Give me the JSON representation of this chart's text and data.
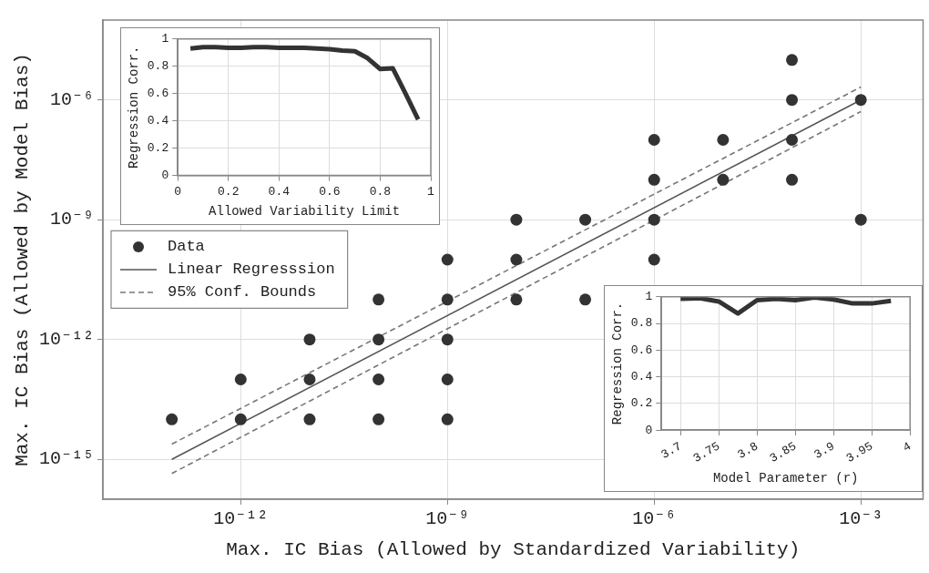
{
  "chart_data": [
    {
      "type": "scatter",
      "xlabel": "Max. IC Bias (Allowed by Standardized Variability)",
      "ylabel": "Max. IC Bias (Allowed by Model Bias)",
      "log": "xy",
      "xlim": [
        1e-14,
        0.008
      ],
      "ylim": [
        1e-16,
        0.0001
      ],
      "xticks": [
        {
          "value": 1e-12,
          "label": "10⁻¹²"
        },
        {
          "value": 1e-09,
          "label": "10⁻⁹"
        },
        {
          "value": 1e-06,
          "label": "10⁻⁶"
        },
        {
          "value": 0.001,
          "label": "10⁻³"
        }
      ],
      "yticks": [
        {
          "value": 1e-15,
          "label": "10⁻¹⁵"
        },
        {
          "value": 1e-12,
          "label": "10⁻¹²"
        },
        {
          "value": 1e-09,
          "label": "10⁻⁹"
        },
        {
          "value": 1e-06,
          "label": "10⁻⁶"
        }
      ],
      "grid": true,
      "legend": "left",
      "series": [
        {
          "name": "Data",
          "type": "scatter",
          "marker": "circle",
          "color": "#333333",
          "x": [
            1e-13,
            1e-12,
            1e-12,
            1e-11,
            1e-11,
            1e-11,
            1e-10,
            1e-10,
            1e-10,
            1e-10,
            1e-09,
            1e-09,
            1e-09,
            1e-09,
            1e-09,
            1e-08,
            1e-08,
            1e-08,
            1e-07,
            1e-07,
            1e-06,
            1e-06,
            1e-06,
            1e-06,
            1e-05,
            1e-05,
            0.0001,
            0.0001,
            0.0001,
            0.0001,
            0.001,
            0.001
          ],
          "values": [
            1e-14,
            1e-13,
            1e-14,
            1e-12,
            1e-13,
            1e-14,
            1e-11,
            1e-12,
            1e-13,
            1e-14,
            1e-10,
            1e-11,
            1e-12,
            1e-13,
            1e-14,
            1e-09,
            1e-10,
            1e-11,
            1e-09,
            1e-11,
            1e-07,
            1e-08,
            1e-09,
            1e-10,
            1e-07,
            1e-08,
            1e-05,
            1e-06,
            1e-07,
            1e-08,
            1e-06,
            1e-09
          ]
        },
        {
          "name": "Linear Regresssion",
          "type": "line",
          "line_style": "solid",
          "color": "#555555",
          "x": [
            1e-13,
            0.001
          ],
          "values": [
            1e-15,
            1e-06
          ]
        },
        {
          "name": "95% Conf. Bounds",
          "type": "line",
          "line_style": "dashed",
          "color": "#777777",
          "x": [
            1e-13,
            0.001
          ],
          "values": [
            2.4e-15,
            2.1e-06
          ]
        },
        {
          "type": "line",
          "line_style": "dashed",
          "color": "#777777",
          "x": [
            1e-13,
            0.001
          ],
          "values": [
            4.4e-16,
            5.1e-07
          ]
        }
      ]
    },
    {
      "type": "line",
      "xlabel": "Allowed Variability Limit",
      "ylabel": "Regression Corr.",
      "xlim": [
        0,
        1
      ],
      "ylim": [
        0,
        1
      ],
      "xticks": [
        0,
        0.2,
        0.4,
        0.6,
        0.8,
        1
      ],
      "yticks": [
        0,
        0.2,
        0.4,
        0.6,
        0.8,
        1
      ],
      "grid": true,
      "color": "#333333",
      "x": [
        0.05,
        0.1,
        0.15,
        0.2,
        0.25,
        0.3,
        0.35,
        0.4,
        0.45,
        0.5,
        0.55,
        0.6,
        0.65,
        0.7,
        0.75,
        0.8,
        0.85,
        0.9,
        0.95
      ],
      "values": [
        0.93,
        0.94,
        0.94,
        0.935,
        0.935,
        0.94,
        0.94,
        0.935,
        0.935,
        0.935,
        0.93,
        0.925,
        0.915,
        0.91,
        0.86,
        0.78,
        0.785,
        0.6,
        0.41
      ]
    },
    {
      "type": "line",
      "xlabel": "Model Parameter (r)",
      "ylabel": "Regression Corr.",
      "xlim": [
        3.675,
        4
      ],
      "ylim": [
        0,
        1
      ],
      "xticks": [
        3.7,
        3.75,
        3.8,
        3.85,
        3.9,
        3.95,
        4
      ],
      "yticks": [
        0,
        0.2,
        0.4,
        0.6,
        0.8,
        1
      ],
      "grid": true,
      "color": "#333333",
      "x": [
        3.7,
        3.725,
        3.75,
        3.775,
        3.8,
        3.825,
        3.85,
        3.875,
        3.9,
        3.925,
        3.95,
        3.975
      ],
      "values": [
        0.985,
        0.99,
        0.965,
        0.875,
        0.975,
        0.985,
        0.975,
        0.995,
        0.98,
        0.95,
        0.95,
        0.97
      ]
    }
  ]
}
